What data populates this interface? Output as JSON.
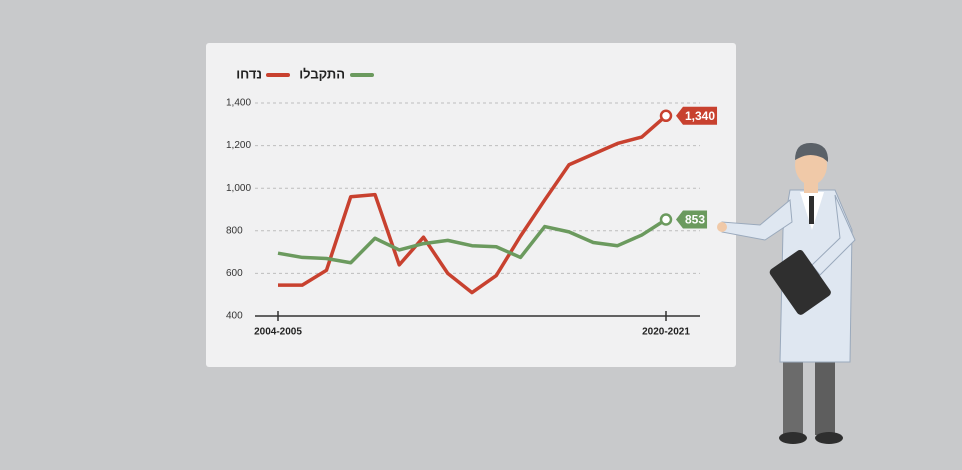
{
  "chart_data": {
    "type": "line",
    "categories": [
      "2004-2005",
      null,
      null,
      null,
      null,
      null,
      null,
      null,
      null,
      null,
      null,
      null,
      null,
      null,
      null,
      null,
      "2020-2021"
    ],
    "series": [
      {
        "name": "נדחו",
        "color": "#c8412f",
        "values": [
          545,
          545,
          615,
          960,
          970,
          640,
          770,
          600,
          510,
          590,
          775,
          945,
          1110,
          1160,
          1210,
          1240,
          1340
        ],
        "value_labels": [
          null,
          null,
          null,
          null,
          null,
          null,
          null,
          null,
          null,
          null,
          null,
          null,
          null,
          null,
          null,
          null,
          "1,340"
        ]
      },
      {
        "name": "התקבלו",
        "color": "#6b9a5e",
        "values": [
          695,
          675,
          670,
          650,
          765,
          710,
          740,
          755,
          730,
          725,
          675,
          820,
          795,
          745,
          730,
          780,
          853
        ]
      }
    ],
    "ylim": [
      400,
      1400
    ],
    "yticks": [
      400,
      600,
      800,
      {
        "value": 1000,
        "label": "1,000"
      },
      {
        "value": 1200,
        "label": "1,200"
      },
      {
        "value": 1400,
        "label": "1,400"
      }
    ],
    "grid": true
  }
}
